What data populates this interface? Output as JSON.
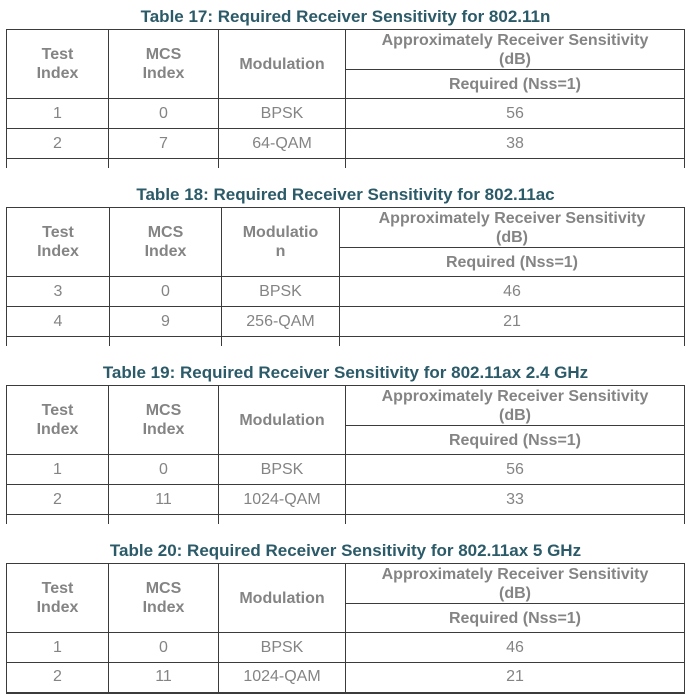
{
  "colors": {
    "title": "#2B5A68",
    "table_text": "#848484",
    "border": "#3b3b3b",
    "background": "#ffffff"
  },
  "tables": [
    {
      "title": "Table 17: Required Receiver Sensitivity for 802.11n",
      "headers": {
        "test_index": "Test\nIndex",
        "mcs_index": "MCS\nIndex",
        "modulation": "Modulation",
        "sensitivity": "Approximately Receiver Sensitivity\n(dB)",
        "required": "Required (Nss=1)"
      },
      "rows": [
        [
          "1",
          "0",
          "BPSK",
          "56"
        ],
        [
          "2",
          "7",
          "64-QAM",
          "38"
        ]
      ]
    },
    {
      "title": "Table 18: Required Receiver Sensitivity for 802.11ac",
      "headers": {
        "test_index": "Test\nIndex",
        "mcs_index": "MCS\nIndex",
        "modulation": "Modulatio\nn",
        "sensitivity": "Approximately Receiver Sensitivity\n(dB)",
        "required": "Required (Nss=1)"
      },
      "rows": [
        [
          "3",
          "0",
          "BPSK",
          "46"
        ],
        [
          "4",
          "9",
          "256-QAM",
          "21"
        ]
      ]
    },
    {
      "title": "Table 19: Required Receiver Sensitivity for 802.11ax 2.4 GHz",
      "headers": {
        "test_index": "Test\nIndex",
        "mcs_index": "MCS\nIndex",
        "modulation": "Modulation",
        "sensitivity": "Approximately Receiver Sensitivity\n(dB)",
        "required": "Required (Nss=1)"
      },
      "rows": [
        [
          "1",
          "0",
          "BPSK",
          "56"
        ],
        [
          "2",
          "11",
          "1024-QAM",
          "33"
        ]
      ]
    },
    {
      "title": "Table 20: Required Receiver Sensitivity for 802.11ax 5 GHz",
      "headers": {
        "test_index": "Test\nIndex",
        "mcs_index": "MCS\nIndex",
        "modulation": "Modulation",
        "sensitivity": "Approximately Receiver Sensitivity\n(dB)",
        "required": "Required (Nss=1)"
      },
      "rows": [
        [
          "1",
          "0",
          "BPSK",
          "46"
        ],
        [
          "2",
          "11",
          "1024-QAM",
          "21"
        ]
      ]
    }
  ]
}
